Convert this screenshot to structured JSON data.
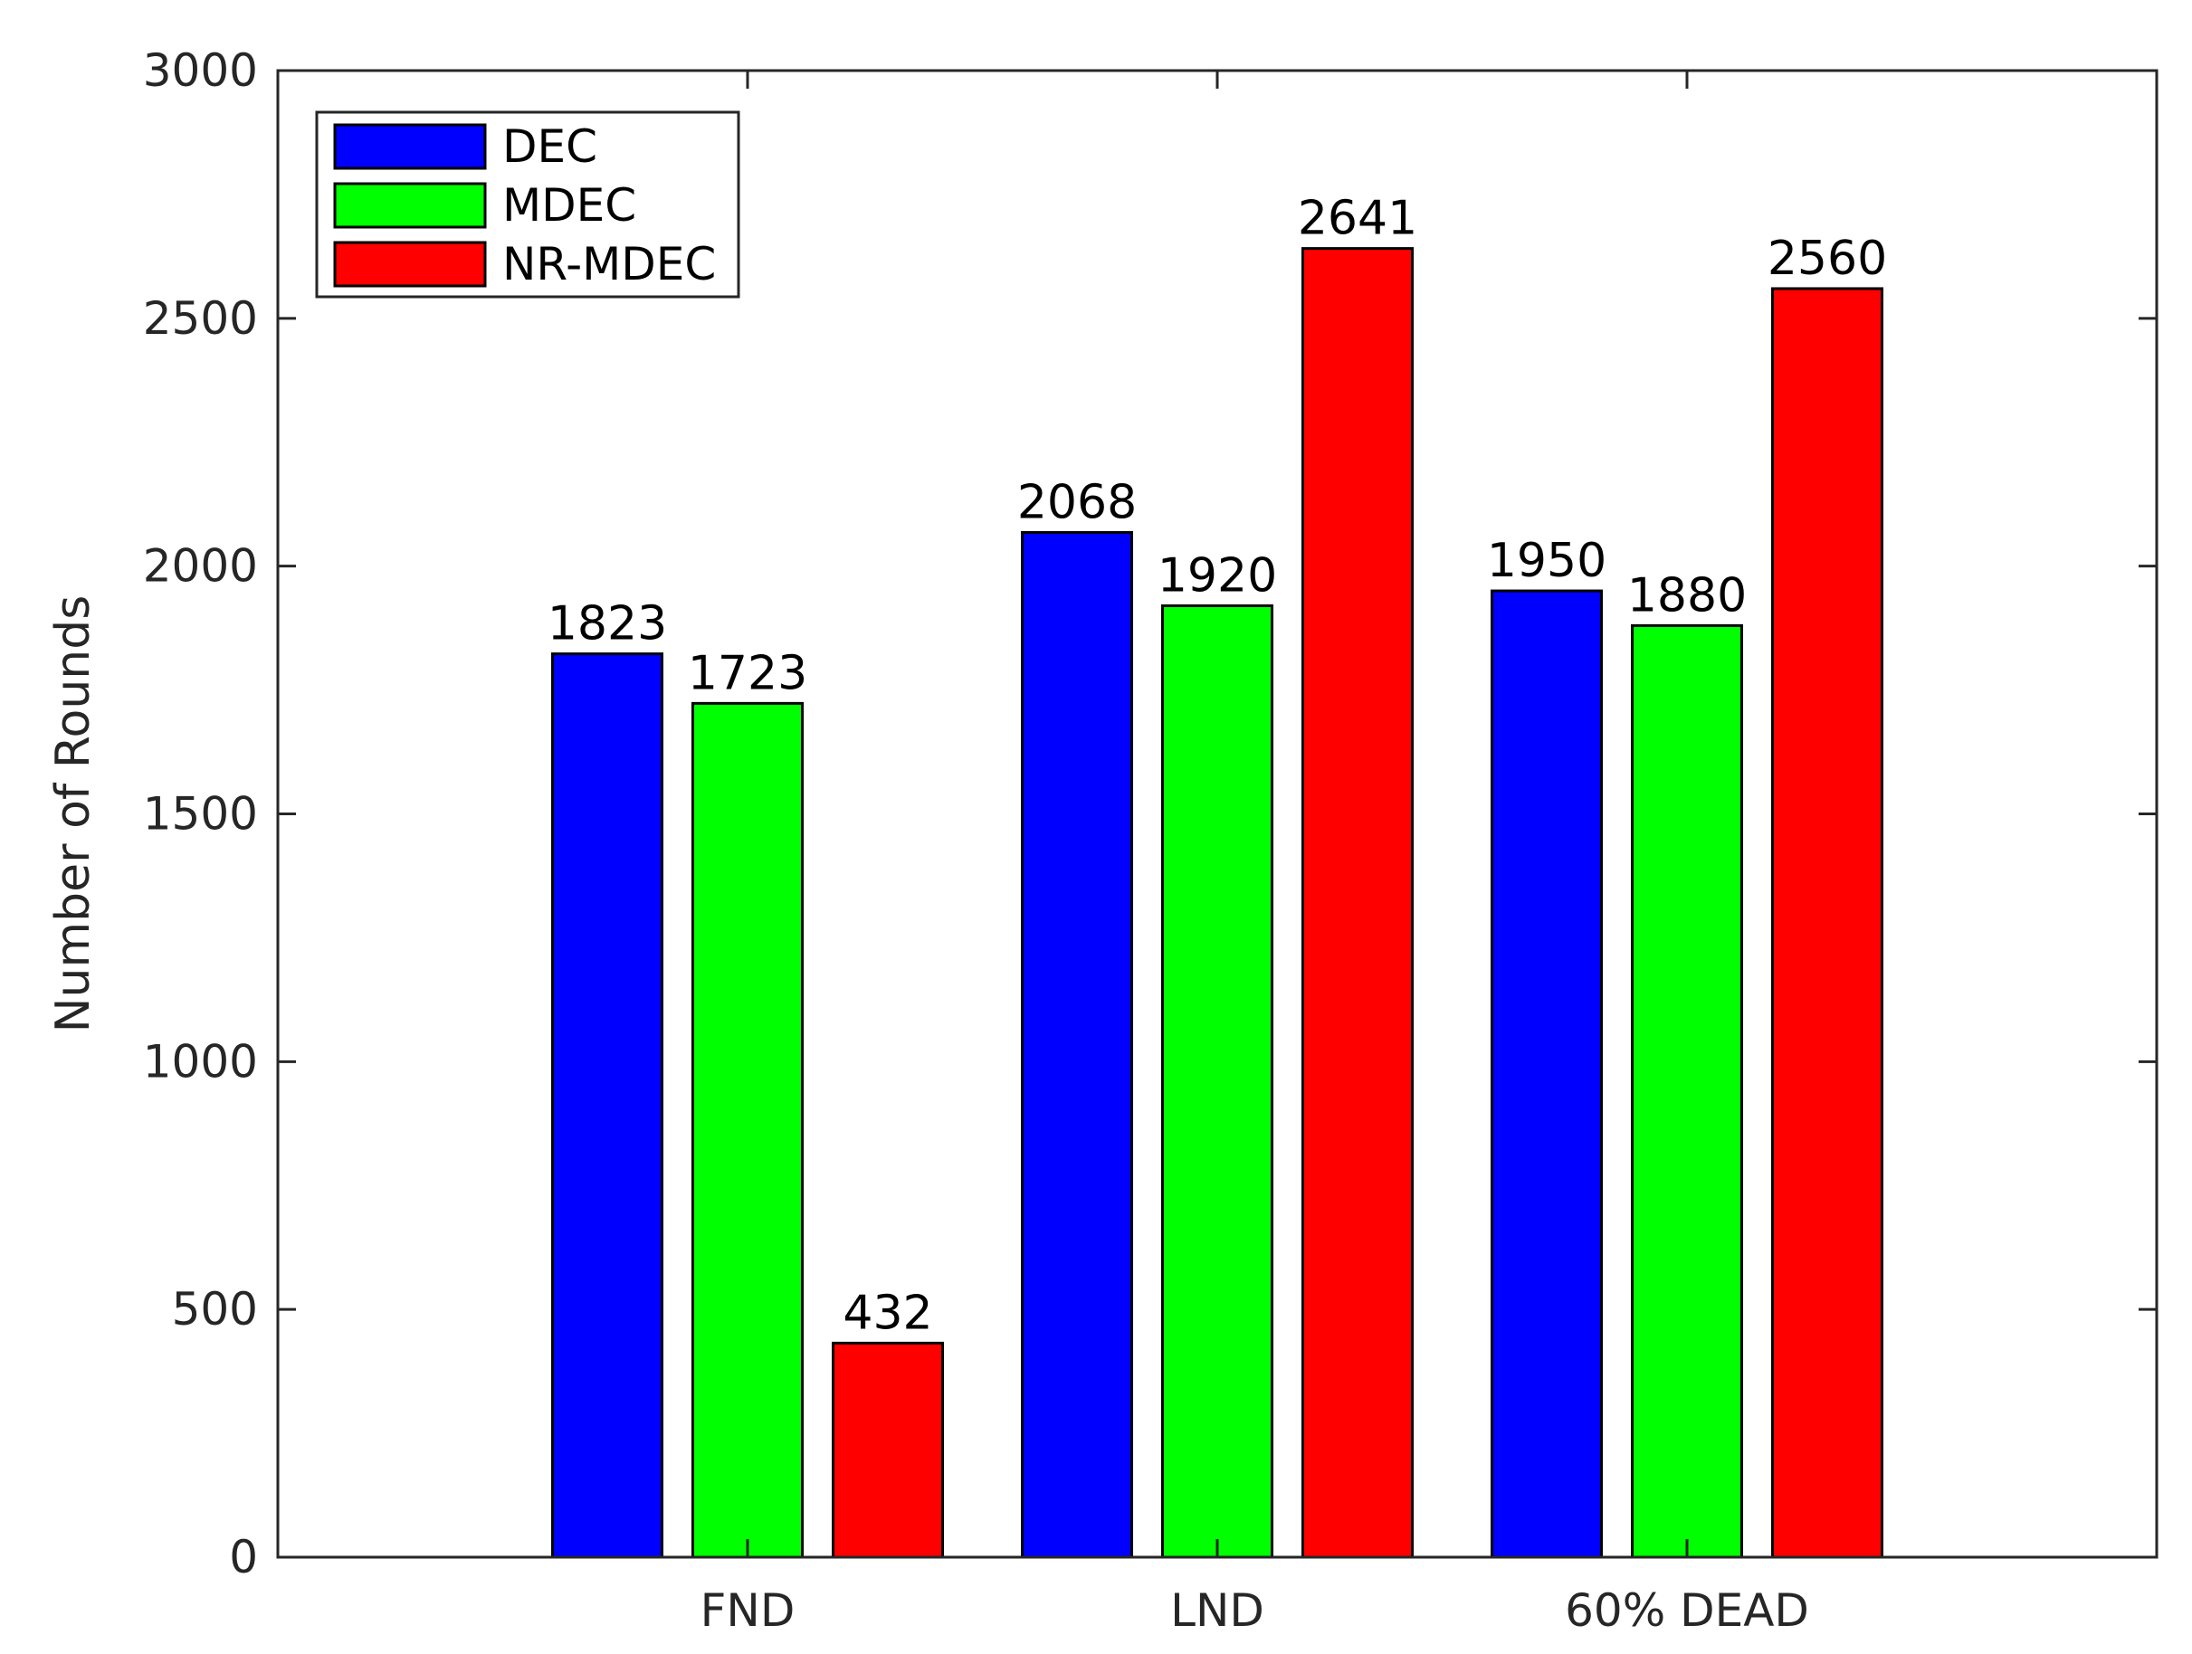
{
  "chart_data": {
    "type": "bar",
    "title": "",
    "xlabel": "",
    "ylabel": "Number of Rounds",
    "categories": [
      "FND",
      "LND",
      "60% DEAD"
    ],
    "ylim": [
      0,
      3000
    ],
    "yticks": [
      0,
      500,
      1000,
      1500,
      2000,
      2500,
      3000
    ],
    "grid": false,
    "legend_position": "top-left",
    "series": [
      {
        "name": "DEC",
        "color": "#0000ff",
        "values": [
          1823,
          2068,
          1950
        ]
      },
      {
        "name": "MDEC",
        "color": "#00ff00",
        "values": [
          1723,
          1920,
          1880
        ]
      },
      {
        "name": "NR-MDEC",
        "color": "#ff0000",
        "values": [
          432,
          2641,
          2560
        ]
      }
    ]
  }
}
